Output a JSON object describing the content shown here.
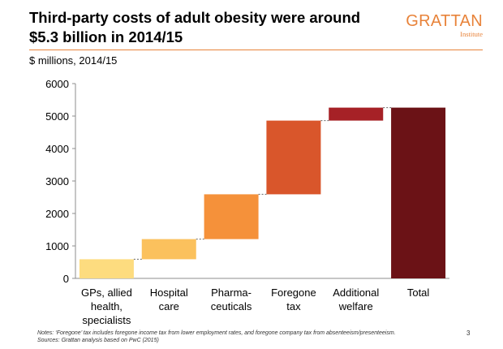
{
  "slide": {
    "title_line1": "Third-party costs of adult obesity were around",
    "title_line2": "$5.3 billion in 2014/15",
    "logo_text": "GRATTAN",
    "logo_subtext": "Institute",
    "units_label": "$ millions, 2014/15",
    "note_line1": "Notes: ‘Foregone’ tax includes foregone income tax from lower employment rates, and foregone company tax from absenteeism/presenteeism.",
    "note_line2": "Sources: Grattan analysis based on PwC (2015)",
    "page_number": "3",
    "accent_color": "#e8833a"
  },
  "chart_data": {
    "type": "bar",
    "subtype": "waterfall",
    "title": "",
    "xlabel": "",
    "ylabel": "",
    "ylim": [
      0,
      6000
    ],
    "yticks": [
      0,
      1000,
      2000,
      3000,
      4000,
      5000,
      6000
    ],
    "grid": false,
    "legend": "none",
    "categories": [
      [
        "GPs, allied",
        "health,",
        "specialists"
      ],
      [
        "Hospital",
        "care"
      ],
      [
        "Pharma-",
        "ceuticals"
      ],
      [
        "Foregone",
        "tax"
      ],
      [
        "Additional",
        "welfare"
      ],
      [
        "Total"
      ]
    ],
    "bars": [
      {
        "start": 0,
        "end": 590,
        "color": "#fddc7f"
      },
      {
        "start": 590,
        "end": 1210,
        "color": "#fbc15d"
      },
      {
        "start": 1210,
        "end": 2590,
        "color": "#f5913a"
      },
      {
        "start": 2590,
        "end": 4860,
        "color": "#d9562b"
      },
      {
        "start": 4860,
        "end": 5260,
        "color": "#a62126"
      },
      {
        "start": 0,
        "end": 5260,
        "color": "#6b1216"
      }
    ]
  }
}
